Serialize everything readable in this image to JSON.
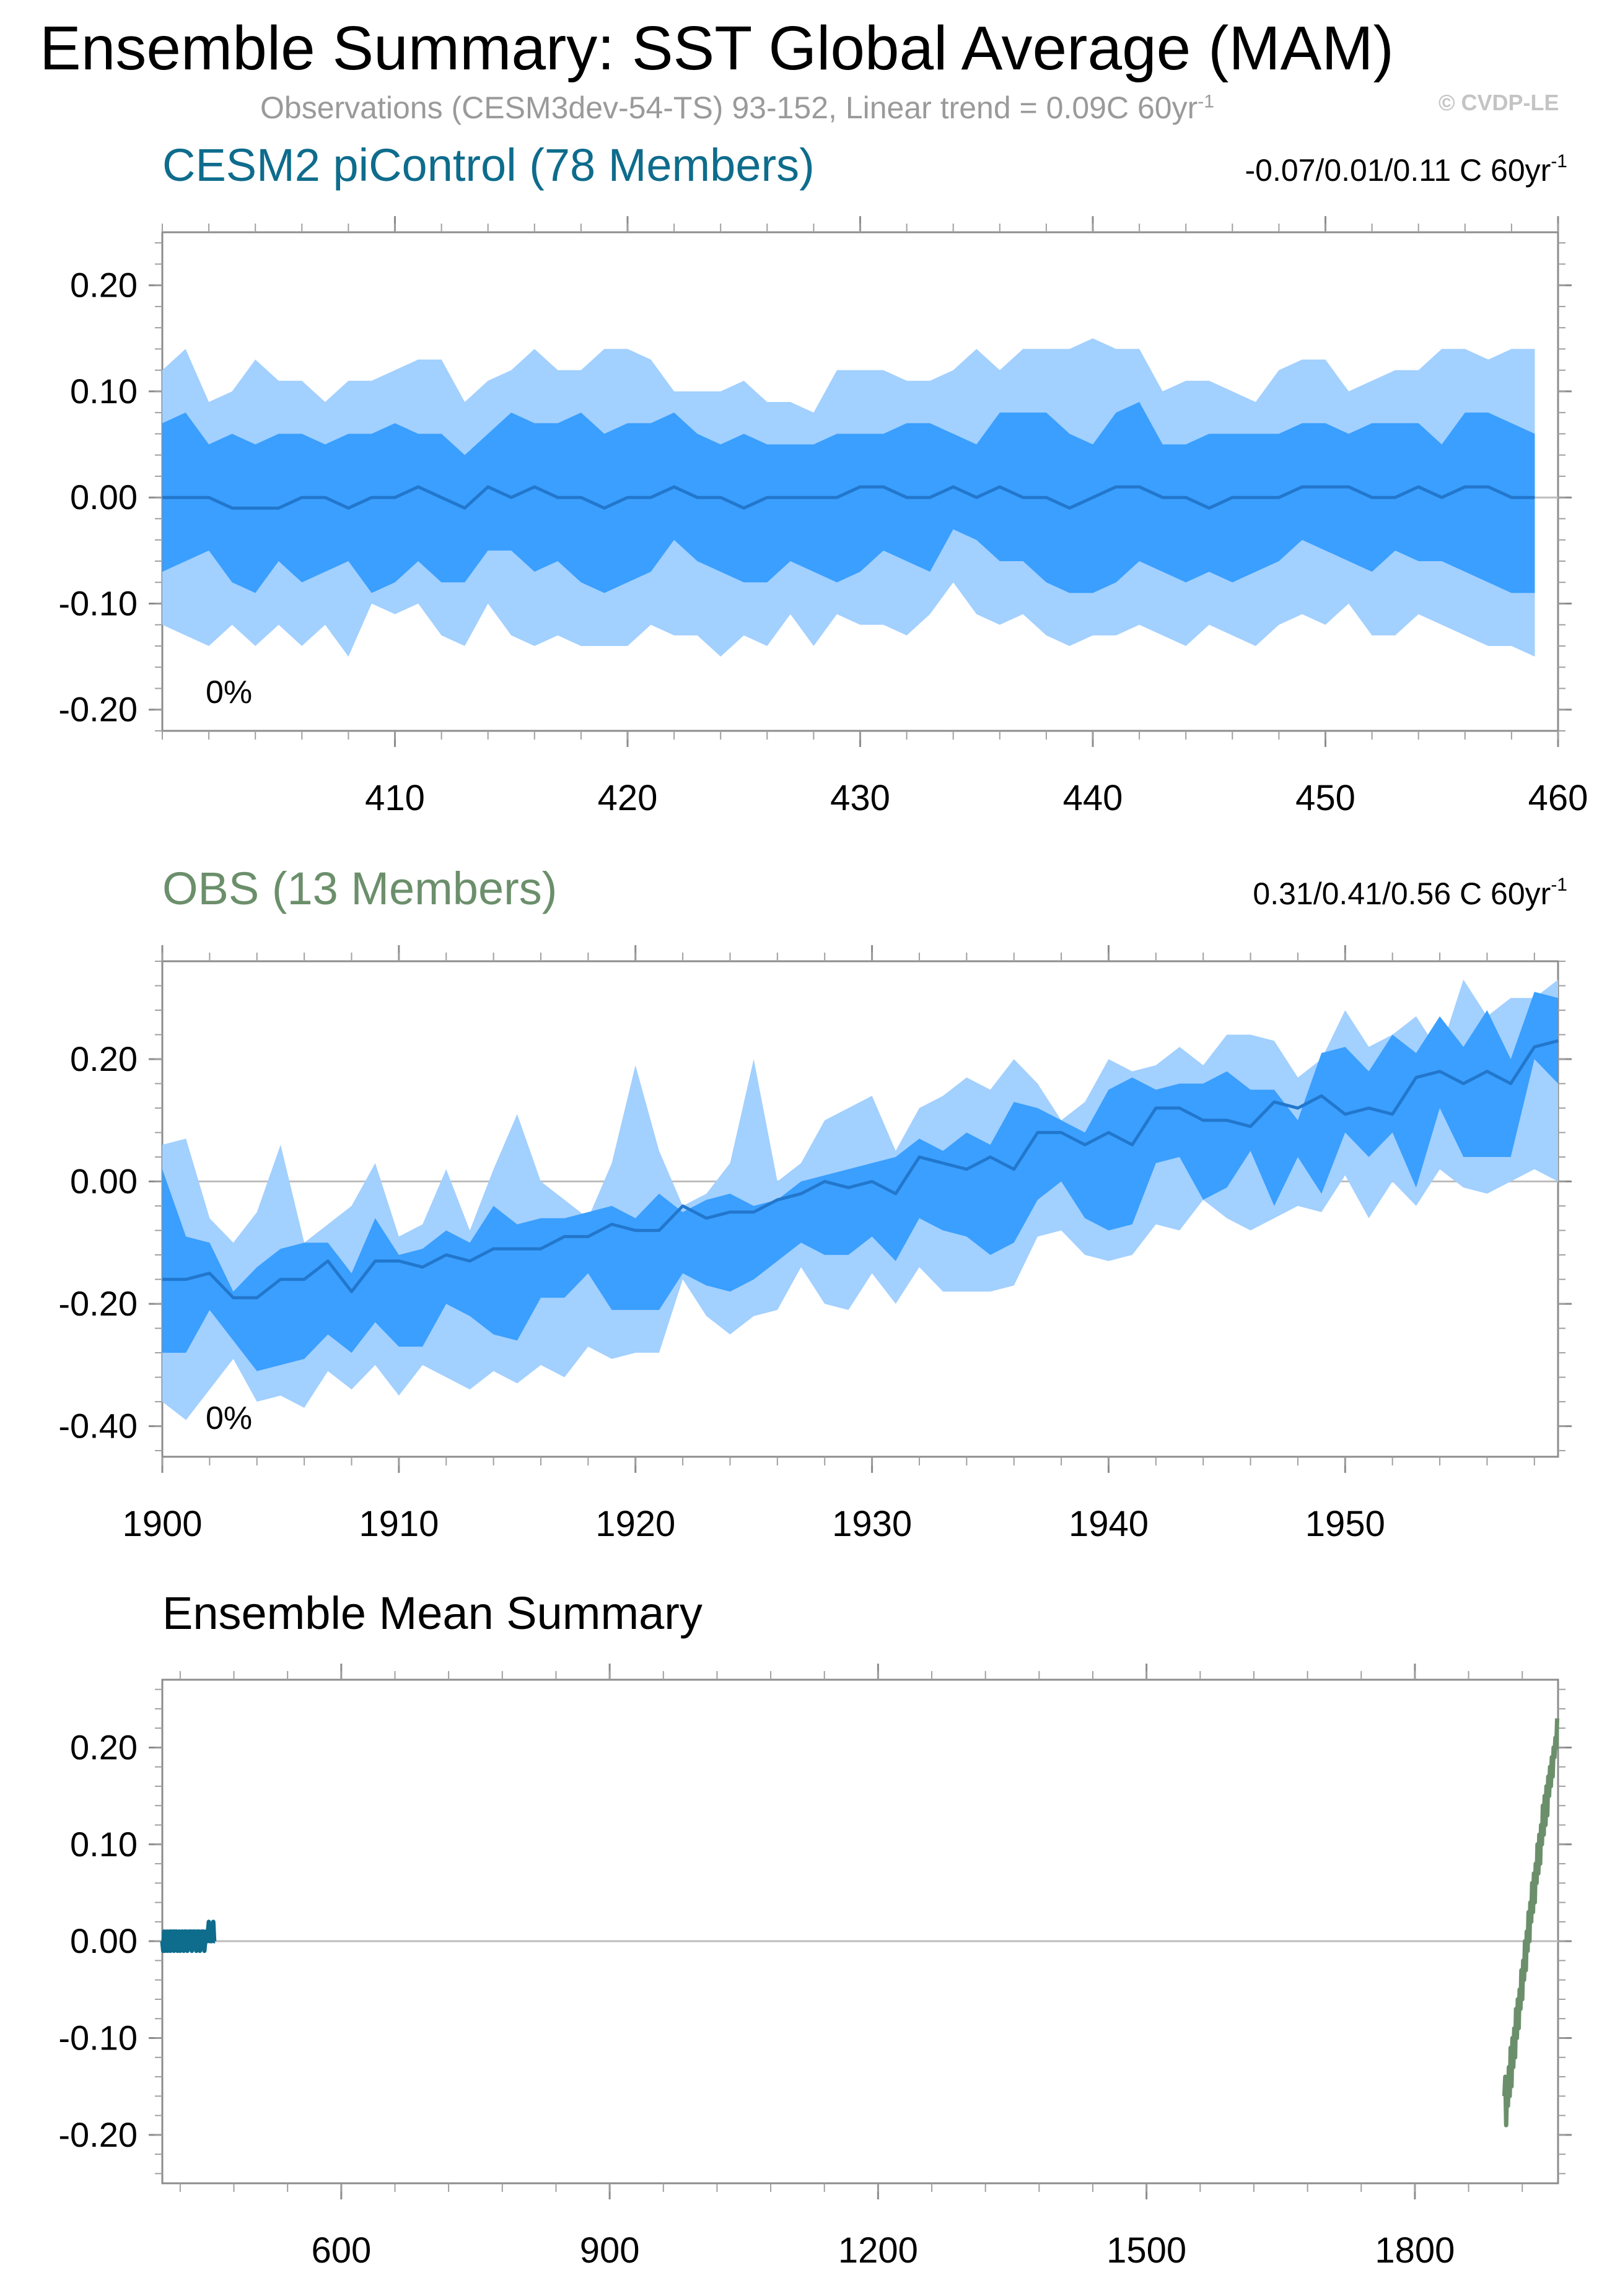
{
  "figure": {
    "title": "Ensemble Summary: SST Global Average (MAM)",
    "subtitle_main": "Observations (CESM3dev-54-TS) 93-152, Linear trend = 0.09C 60yr",
    "subtitle_sup": "-1",
    "watermark": "© CVDP-LE"
  },
  "colors": {
    "outer_band": "#a2d0ff",
    "inner_band": "#3a9ffe",
    "median_line": "#2277cc",
    "cesm_title": "#0e6c8c",
    "obs_title": "#6b8f6b",
    "zero_line": "#bdbdbd"
  },
  "chart_data": [
    {
      "id": "cesm2",
      "type": "area",
      "title": "CESM2 piControl (78 Members)",
      "trend_text": "-0.07/0.01/0.11 C 60yr",
      "trend_sup": "-1",
      "percent_label": "0%",
      "xlim": [
        400,
        460
      ],
      "ylim": [
        -0.22,
        0.25
      ],
      "xticks": [
        410,
        420,
        430,
        440,
        450,
        460
      ],
      "xtick_labels": [
        "410",
        "420",
        "430",
        "440",
        "450",
        "460"
      ],
      "yticks": [
        -0.2,
        -0.1,
        0.0,
        0.1,
        0.2
      ],
      "ytick_labels": [
        "-0.20",
        "-0.10",
        "0.00",
        "0.10",
        "0.20"
      ],
      "x_start": 400,
      "outer_upper": [
        0.12,
        0.14,
        0.09,
        0.1,
        0.13,
        0.11,
        0.11,
        0.09,
        0.11,
        0.11,
        0.12,
        0.13,
        0.13,
        0.09,
        0.11,
        0.12,
        0.14,
        0.12,
        0.12,
        0.14,
        0.14,
        0.13,
        0.1,
        0.1,
        0.1,
        0.11,
        0.09,
        0.09,
        0.08,
        0.12,
        0.12,
        0.12,
        0.11,
        0.11,
        0.12,
        0.14,
        0.12,
        0.14,
        0.14,
        0.14,
        0.15,
        0.14,
        0.14,
        0.1,
        0.11,
        0.11,
        0.1,
        0.09,
        0.12,
        0.13,
        0.13,
        0.1,
        0.11,
        0.12,
        0.12,
        0.14,
        0.14,
        0.13,
        0.14,
        0.14
      ],
      "inner_upper": [
        0.07,
        0.08,
        0.05,
        0.06,
        0.05,
        0.06,
        0.06,
        0.05,
        0.06,
        0.06,
        0.07,
        0.06,
        0.06,
        0.04,
        0.06,
        0.08,
        0.07,
        0.07,
        0.08,
        0.06,
        0.07,
        0.07,
        0.08,
        0.06,
        0.05,
        0.06,
        0.05,
        0.05,
        0.05,
        0.06,
        0.06,
        0.06,
        0.07,
        0.07,
        0.06,
        0.05,
        0.08,
        0.08,
        0.08,
        0.06,
        0.05,
        0.08,
        0.09,
        0.05,
        0.05,
        0.06,
        0.06,
        0.06,
        0.06,
        0.07,
        0.07,
        0.06,
        0.07,
        0.07,
        0.07,
        0.05,
        0.08,
        0.08,
        0.07,
        0.06
      ],
      "median": [
        0.0,
        0.0,
        0.0,
        -0.01,
        -0.01,
        -0.01,
        0.0,
        0.0,
        -0.01,
        0.0,
        0.0,
        0.01,
        0.0,
        -0.01,
        0.01,
        0.0,
        0.01,
        0.0,
        0.0,
        -0.01,
        0.0,
        0.0,
        0.01,
        0.0,
        0.0,
        -0.01,
        0.0,
        0.0,
        0.0,
        0.0,
        0.01,
        0.01,
        0.0,
        0.0,
        0.01,
        0.0,
        0.01,
        0.0,
        0.0,
        -0.01,
        0.0,
        0.01,
        0.01,
        0.0,
        0.0,
        -0.01,
        0.0,
        0.0,
        0.0,
        0.01,
        0.01,
        0.01,
        0.0,
        0.0,
        0.01,
        0.0,
        0.01,
        0.01,
        0.0,
        0.0
      ],
      "inner_lower": [
        -0.07,
        -0.06,
        -0.05,
        -0.08,
        -0.09,
        -0.06,
        -0.08,
        -0.07,
        -0.06,
        -0.09,
        -0.08,
        -0.06,
        -0.08,
        -0.08,
        -0.05,
        -0.05,
        -0.07,
        -0.06,
        -0.08,
        -0.09,
        -0.08,
        -0.07,
        -0.04,
        -0.06,
        -0.07,
        -0.08,
        -0.08,
        -0.06,
        -0.07,
        -0.08,
        -0.07,
        -0.05,
        -0.06,
        -0.07,
        -0.03,
        -0.04,
        -0.06,
        -0.06,
        -0.08,
        -0.09,
        -0.09,
        -0.08,
        -0.06,
        -0.07,
        -0.08,
        -0.07,
        -0.08,
        -0.07,
        -0.06,
        -0.04,
        -0.05,
        -0.06,
        -0.07,
        -0.05,
        -0.06,
        -0.06,
        -0.07,
        -0.08,
        -0.09,
        -0.09
      ],
      "outer_lower": [
        -0.12,
        -0.13,
        -0.14,
        -0.12,
        -0.14,
        -0.12,
        -0.14,
        -0.12,
        -0.15,
        -0.1,
        -0.11,
        -0.1,
        -0.13,
        -0.14,
        -0.1,
        -0.13,
        -0.14,
        -0.13,
        -0.14,
        -0.14,
        -0.14,
        -0.12,
        -0.13,
        -0.13,
        -0.15,
        -0.13,
        -0.14,
        -0.11,
        -0.14,
        -0.11,
        -0.12,
        -0.12,
        -0.13,
        -0.11,
        -0.08,
        -0.11,
        -0.12,
        -0.11,
        -0.13,
        -0.14,
        -0.13,
        -0.13,
        -0.12,
        -0.13,
        -0.14,
        -0.12,
        -0.13,
        -0.14,
        -0.12,
        -0.11,
        -0.12,
        -0.1,
        -0.13,
        -0.13,
        -0.11,
        -0.12,
        -0.13,
        -0.14,
        -0.14,
        -0.15
      ]
    },
    {
      "id": "obs",
      "type": "area",
      "title": "OBS (13 Members)",
      "trend_text": "0.31/0.41/0.56 C 60yr",
      "trend_sup": "-1",
      "percent_label": "0%",
      "xlim": [
        1900,
        1959
      ],
      "ylim": [
        -0.45,
        0.36
      ],
      "xticks": [
        1900,
        1910,
        1920,
        1930,
        1940,
        1950
      ],
      "xtick_labels": [
        "1900",
        "1910",
        "1920",
        "1930",
        "1940",
        "1950"
      ],
      "yticks": [
        -0.4,
        -0.2,
        0.0,
        0.2
      ],
      "ytick_labels": [
        "-0.40",
        "-0.20",
        "0.00",
        "0.20"
      ],
      "x_start": 1900,
      "outer_upper": [
        0.06,
        0.07,
        -0.06,
        -0.1,
        -0.05,
        0.06,
        -0.1,
        -0.07,
        -0.04,
        0.03,
        -0.09,
        -0.07,
        0.02,
        -0.08,
        0.02,
        0.11,
        0.0,
        -0.03,
        -0.06,
        0.03,
        0.19,
        0.05,
        -0.04,
        -0.02,
        0.03,
        0.2,
        0.0,
        0.03,
        0.1,
        0.12,
        0.14,
        0.05,
        0.12,
        0.14,
        0.17,
        0.15,
        0.2,
        0.16,
        0.1,
        0.13,
        0.2,
        0.18,
        0.19,
        0.22,
        0.19,
        0.24,
        0.24,
        0.23,
        0.17,
        0.2,
        0.28,
        0.22,
        0.24,
        0.27,
        0.21,
        0.33,
        0.27,
        0.3,
        0.3,
        0.33
      ],
      "inner_upper": [
        0.02,
        -0.09,
        -0.1,
        -0.18,
        -0.14,
        -0.11,
        -0.1,
        -0.1,
        -0.15,
        -0.06,
        -0.12,
        -0.11,
        -0.08,
        -0.1,
        -0.04,
        -0.07,
        -0.06,
        -0.06,
        -0.05,
        -0.04,
        -0.06,
        -0.02,
        -0.05,
        -0.03,
        -0.02,
        -0.04,
        -0.03,
        0.0,
        0.01,
        0.02,
        0.03,
        0.04,
        0.07,
        0.05,
        0.08,
        0.06,
        0.13,
        0.12,
        0.1,
        0.08,
        0.15,
        0.17,
        0.15,
        0.16,
        0.16,
        0.18,
        0.15,
        0.15,
        0.1,
        0.21,
        0.22,
        0.18,
        0.24,
        0.21,
        0.27,
        0.22,
        0.28,
        0.2,
        0.31,
        0.3
      ],
      "median": [
        -0.16,
        -0.16,
        -0.15,
        -0.19,
        -0.19,
        -0.16,
        -0.16,
        -0.13,
        -0.18,
        -0.13,
        -0.13,
        -0.14,
        -0.12,
        -0.13,
        -0.11,
        -0.11,
        -0.11,
        -0.09,
        -0.09,
        -0.07,
        -0.08,
        -0.08,
        -0.04,
        -0.06,
        -0.05,
        -0.05,
        -0.03,
        -0.02,
        0.0,
        -0.01,
        0.0,
        -0.02,
        0.04,
        0.03,
        0.02,
        0.04,
        0.02,
        0.08,
        0.08,
        0.06,
        0.08,
        0.06,
        0.12,
        0.12,
        0.1,
        0.1,
        0.09,
        0.13,
        0.12,
        0.14,
        0.11,
        0.12,
        0.11,
        0.17,
        0.18,
        0.16,
        0.18,
        0.16,
        0.22,
        0.23
      ],
      "inner_lower": [
        -0.28,
        -0.28,
        -0.21,
        -0.26,
        -0.31,
        -0.3,
        -0.29,
        -0.25,
        -0.28,
        -0.23,
        -0.27,
        -0.27,
        -0.2,
        -0.22,
        -0.25,
        -0.26,
        -0.19,
        -0.19,
        -0.15,
        -0.21,
        -0.21,
        -0.21,
        -0.15,
        -0.17,
        -0.18,
        -0.16,
        -0.13,
        -0.1,
        -0.12,
        -0.12,
        -0.09,
        -0.13,
        -0.06,
        -0.08,
        -0.09,
        -0.12,
        -0.1,
        -0.03,
        0.0,
        -0.06,
        -0.08,
        -0.07,
        0.03,
        0.04,
        -0.03,
        -0.01,
        0.05,
        -0.04,
        0.04,
        -0.02,
        0.08,
        0.04,
        0.08,
        -0.01,
        0.12,
        0.04,
        0.04,
        0.04,
        0.2,
        0.16
      ],
      "outer_lower": [
        -0.36,
        -0.39,
        -0.34,
        -0.29,
        -0.36,
        -0.35,
        -0.37,
        -0.31,
        -0.34,
        -0.3,
        -0.35,
        -0.3,
        -0.32,
        -0.34,
        -0.31,
        -0.33,
        -0.3,
        -0.32,
        -0.27,
        -0.29,
        -0.28,
        -0.28,
        -0.16,
        -0.22,
        -0.25,
        -0.22,
        -0.21,
        -0.14,
        -0.2,
        -0.21,
        -0.15,
        -0.2,
        -0.14,
        -0.18,
        -0.18,
        -0.18,
        -0.17,
        -0.09,
        -0.08,
        -0.12,
        -0.13,
        -0.12,
        -0.07,
        -0.08,
        -0.03,
        -0.06,
        -0.08,
        -0.06,
        -0.04,
        -0.05,
        0.01,
        -0.06,
        0.0,
        -0.04,
        0.02,
        -0.01,
        -0.02,
        0.0,
        0.02,
        0.0
      ]
    },
    {
      "id": "ensemble-mean",
      "type": "line",
      "title": "Ensemble Mean Summary",
      "xlim": [
        400,
        1960
      ],
      "ylim": [
        -0.25,
        0.27
      ],
      "xticks": [
        600,
        900,
        1200,
        1500,
        1800
      ],
      "xtick_labels": [
        "600",
        "900",
        "1200",
        "1500",
        "1800"
      ],
      "yticks": [
        -0.2,
        -0.1,
        0.0,
        0.1,
        0.2
      ],
      "ytick_labels": [
        "-0.20",
        "-0.10",
        "0.00",
        "0.10",
        "0.20"
      ],
      "series": [
        {
          "name": "CESM2 piControl",
          "color": "#0e6c8c",
          "x_start": 400,
          "values": [
            0.0,
            -0.01,
            0.01,
            -0.01,
            0.0,
            0.01,
            -0.01,
            0.0,
            0.01,
            -0.01,
            0.01,
            0.0,
            0.01,
            -0.01,
            0.01,
            0.0,
            0.01,
            -0.01,
            0.0,
            0.01,
            -0.01,
            0.0,
            0.01,
            0.0,
            -0.01,
            0.01,
            0.0,
            0.01,
            -0.01,
            0.0,
            0.01,
            0.0,
            0.01,
            -0.01,
            0.01,
            0.0,
            0.01,
            0.0,
            -0.01,
            0.01,
            0.0,
            0.01,
            -0.01,
            0.0,
            0.01,
            0.0,
            0.01,
            -0.01,
            0.0,
            0.01,
            0.0,
            0.01,
            0.02,
            0.0,
            0.01,
            0.0,
            0.01,
            0.02,
            0.0,
            0.0
          ]
        },
        {
          "name": "OBS",
          "color": "#6b8f6b",
          "x_start": 1900,
          "values": [
            -0.16,
            -0.14,
            -0.19,
            -0.15,
            -0.17,
            -0.13,
            -0.16,
            -0.11,
            -0.15,
            -0.1,
            -0.13,
            -0.09,
            -0.12,
            -0.07,
            -0.1,
            -0.06,
            -0.09,
            -0.05,
            -0.07,
            -0.03,
            -0.06,
            -0.02,
            -0.04,
            0.0,
            -0.03,
            0.01,
            -0.01,
            0.03,
            0.0,
            0.04,
            0.02,
            0.06,
            0.03,
            0.07,
            0.04,
            0.08,
            0.06,
            0.1,
            0.07,
            0.11,
            0.08,
            0.12,
            0.1,
            0.14,
            0.11,
            0.15,
            0.12,
            0.16,
            0.13,
            0.17,
            0.15,
            0.18,
            0.16,
            0.19,
            0.17,
            0.2,
            0.19,
            0.21,
            0.2,
            0.23
          ]
        }
      ]
    }
  ]
}
